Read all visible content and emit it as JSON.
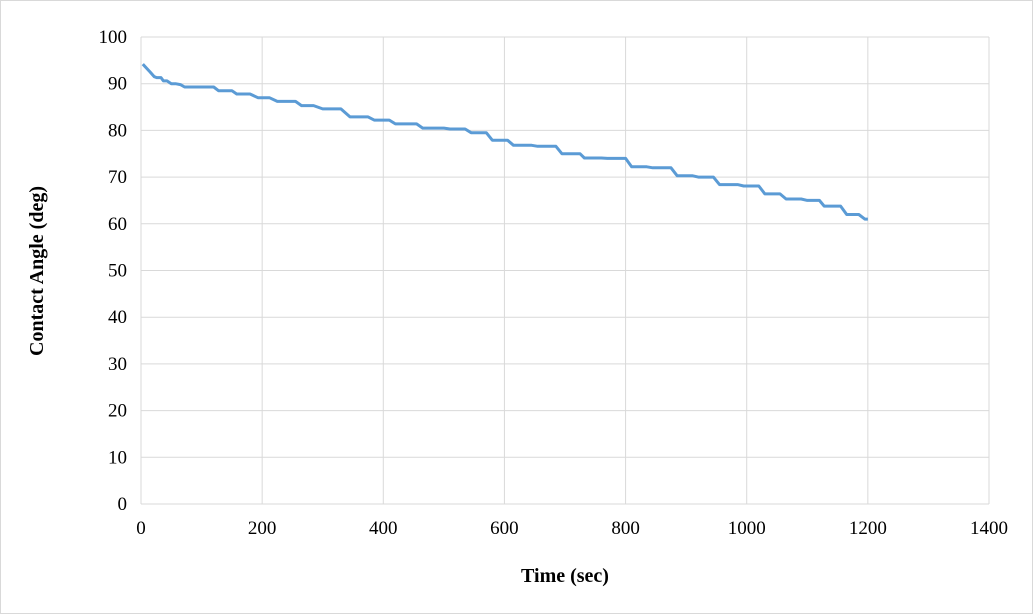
{
  "chart_data": {
    "type": "line",
    "title": "",
    "xlabel": "Time (sec)",
    "ylabel": "Contact Angle (deg)",
    "xlim": [
      0,
      1400
    ],
    "ylim": [
      0,
      100
    ],
    "x_ticks": [
      "0",
      "200",
      "400",
      "600",
      "800",
      "1000",
      "1200",
      "1400"
    ],
    "y_ticks": [
      "0",
      "10",
      "20",
      "30",
      "40",
      "50",
      "60",
      "70",
      "80",
      "90",
      "100"
    ],
    "grid": true,
    "legend": "none",
    "colors": {
      "series": "#5b9bd5",
      "grid": "#d9d9d9",
      "frame": "#d9d9d9"
    },
    "series": [
      {
        "x": [
          3,
          8,
          15,
          22,
          26,
          33,
          37,
          43,
          50,
          57,
          65,
          72,
          78,
          100,
          120,
          128,
          150,
          158,
          180,
          193,
          212,
          225,
          255,
          265,
          285,
          300,
          330,
          345,
          375,
          385,
          410,
          420,
          455,
          465,
          500,
          510,
          535,
          545,
          570,
          580,
          605,
          615,
          645,
          655,
          685,
          695,
          725,
          732,
          760,
          770,
          800,
          810,
          835,
          845,
          875,
          885,
          910,
          920,
          945,
          955,
          985,
          995,
          1020,
          1030,
          1055,
          1065,
          1090,
          1100,
          1120,
          1128,
          1155,
          1165,
          1185,
          1195,
          1200
        ],
        "y": [
          94.2,
          93.5,
          92.5,
          91.5,
          91.3,
          91.3,
          90.6,
          90.6,
          90.0,
          90.0,
          89.8,
          89.3,
          89.3,
          89.3,
          89.3,
          88.5,
          88.5,
          87.8,
          87.8,
          87.0,
          87.0,
          86.2,
          86.2,
          85.3,
          85.3,
          84.6,
          84.6,
          82.9,
          82.9,
          82.2,
          82.2,
          81.4,
          81.4,
          80.5,
          80.5,
          80.3,
          80.3,
          79.5,
          79.5,
          77.9,
          77.9,
          76.8,
          76.8,
          76.6,
          76.6,
          75.0,
          75.0,
          74.1,
          74.1,
          74.0,
          74.0,
          72.2,
          72.2,
          72.0,
          72.0,
          70.3,
          70.3,
          70.0,
          70.0,
          68.4,
          68.4,
          68.1,
          68.1,
          66.4,
          66.4,
          65.3,
          65.3,
          65.0,
          65.0,
          63.8,
          63.8,
          62.0,
          62.0,
          61.0,
          61.0
        ]
      }
    ]
  }
}
